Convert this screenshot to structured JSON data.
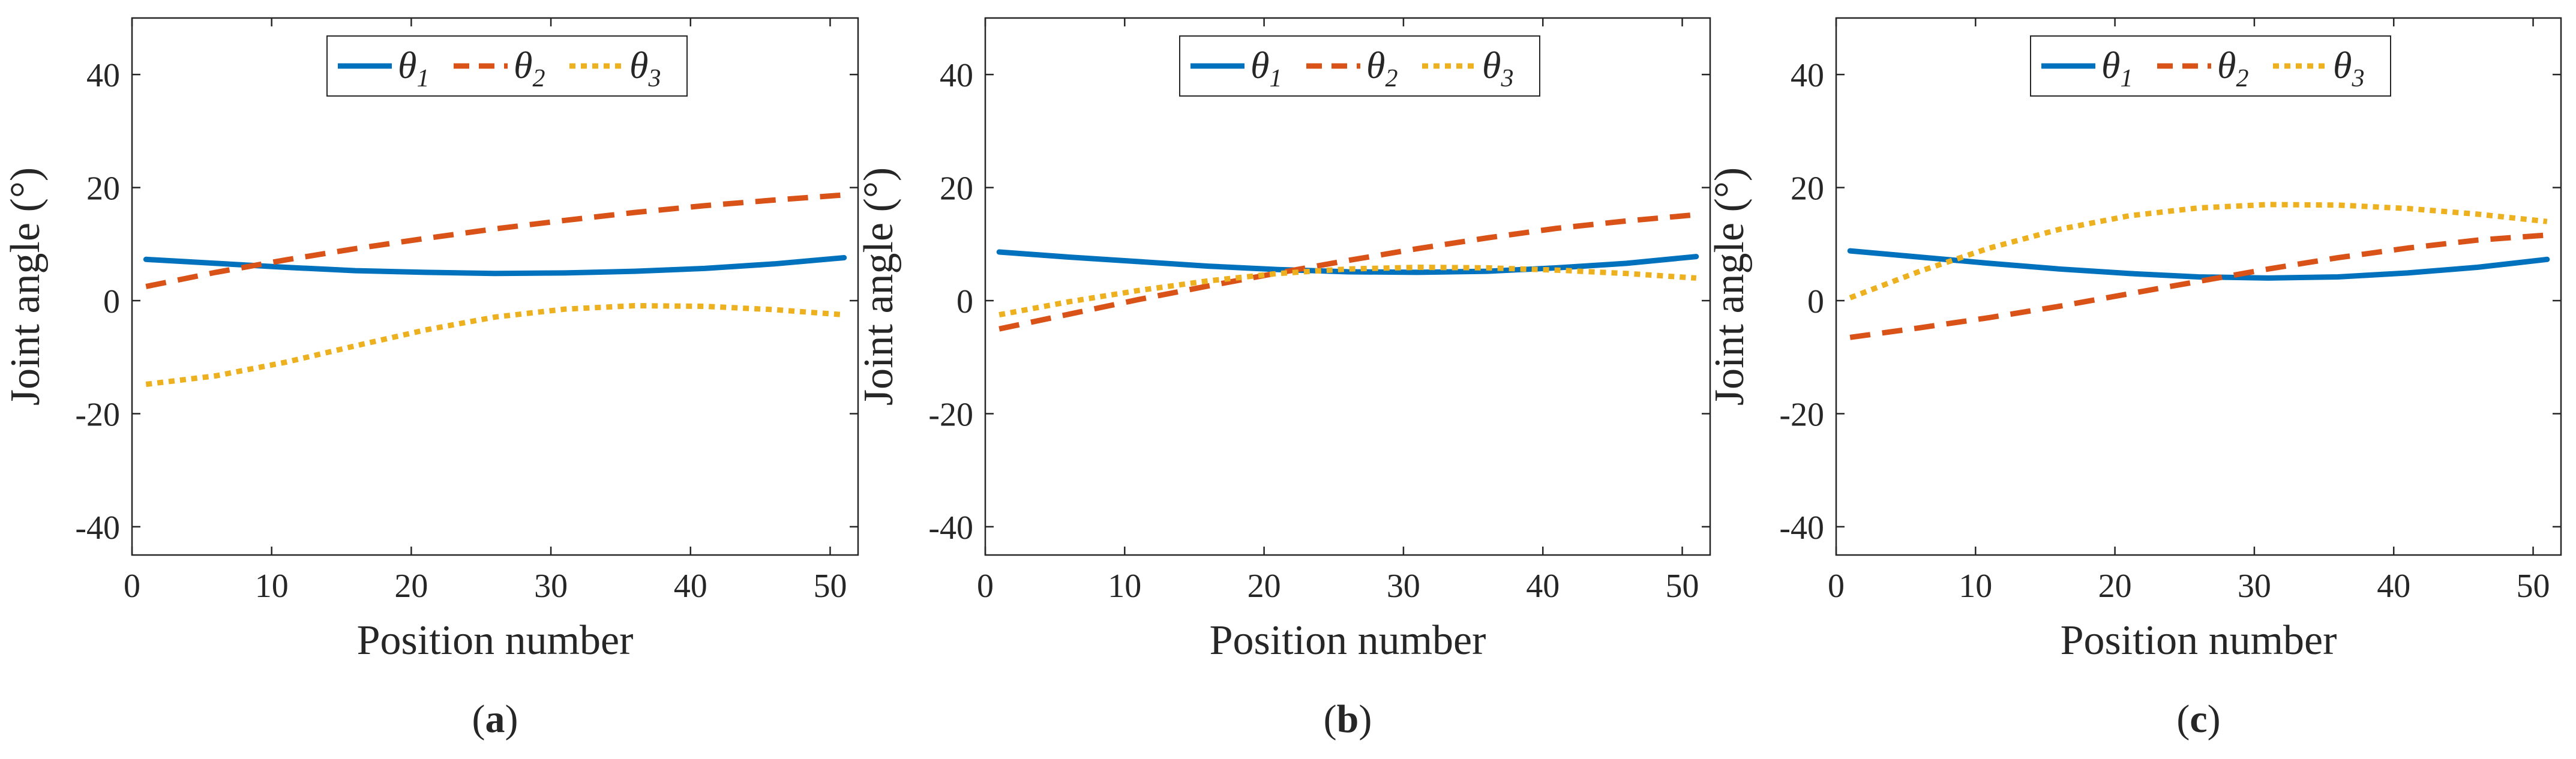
{
  "chart_data": [
    {
      "type": "line",
      "caption": "a",
      "xlabel": "Position number",
      "ylabel": "Joint angle (°)",
      "xlim": [
        0,
        52
      ],
      "ylim": [
        -45,
        50
      ],
      "xticks": [
        0,
        10,
        20,
        30,
        40,
        50
      ],
      "yticks": [
        -40,
        -20,
        0,
        20,
        40
      ],
      "legend_position": "top-center",
      "x": [
        1,
        6,
        11,
        16,
        21,
        26,
        31,
        36,
        41,
        46,
        51
      ],
      "series": [
        {
          "name": "θ1",
          "symbol": "θ",
          "subscript": "1",
          "style": "solid",
          "color": "#0072BD",
          "values": [
            7.3,
            6.6,
            5.9,
            5.3,
            5.0,
            4.8,
            4.9,
            5.2,
            5.7,
            6.5,
            7.6
          ]
        },
        {
          "name": "θ2",
          "symbol": "θ",
          "subscript": "2",
          "style": "dashed",
          "color": "#D95319",
          "values": [
            2.5,
            5.0,
            7.2,
            9.2,
            11.0,
            12.7,
            14.2,
            15.6,
            16.8,
            17.8,
            18.7
          ]
        },
        {
          "name": "θ3",
          "symbol": "θ",
          "subscript": "3",
          "style": "dotted",
          "color": "#EDB120",
          "values": [
            -14.8,
            -13.3,
            -10.9,
            -8.0,
            -5.2,
            -2.9,
            -1.5,
            -0.9,
            -1.0,
            -1.6,
            -2.5
          ]
        }
      ]
    },
    {
      "type": "line",
      "caption": "b",
      "xlabel": "Position number",
      "ylabel": "Joint angle (°)",
      "xlim": [
        0,
        52
      ],
      "ylim": [
        -45,
        50
      ],
      "xticks": [
        0,
        10,
        20,
        30,
        40,
        50
      ],
      "yticks": [
        -40,
        -20,
        0,
        20,
        40
      ],
      "legend_position": "top-center",
      "x": [
        1,
        6,
        11,
        16,
        21,
        26,
        31,
        36,
        41,
        46,
        51
      ],
      "series": [
        {
          "name": "θ1",
          "symbol": "θ",
          "subscript": "1",
          "style": "solid",
          "color": "#0072BD",
          "values": [
            8.6,
            7.7,
            6.9,
            6.1,
            5.5,
            5.1,
            5.0,
            5.2,
            5.8,
            6.6,
            7.8
          ]
        },
        {
          "name": "θ2",
          "symbol": "θ",
          "subscript": "2",
          "style": "dashed",
          "color": "#D95319",
          "values": [
            -5.0,
            -2.4,
            0.2,
            2.6,
            4.9,
            7.1,
            9.2,
            11.1,
            12.8,
            14.1,
            15.2
          ]
        },
        {
          "name": "θ3",
          "symbol": "θ",
          "subscript": "3",
          "style": "dotted",
          "color": "#EDB120",
          "values": [
            -2.5,
            -0.2,
            1.8,
            3.5,
            4.8,
            5.6,
            5.9,
            5.8,
            5.4,
            4.8,
            4.0
          ]
        }
      ]
    },
    {
      "type": "line",
      "caption": "c",
      "xlabel": "Position number",
      "ylabel": "Joint angle (°)",
      "xlim": [
        0,
        52
      ],
      "ylim": [
        -45,
        50
      ],
      "xticks": [
        0,
        10,
        20,
        30,
        40,
        50
      ],
      "yticks": [
        -40,
        -20,
        0,
        20,
        40
      ],
      "legend_position": "top-center",
      "x": [
        1,
        6,
        11,
        16,
        21,
        26,
        31,
        36,
        41,
        46,
        51
      ],
      "series": [
        {
          "name": "θ1",
          "symbol": "θ",
          "subscript": "1",
          "style": "solid",
          "color": "#0072BD",
          "values": [
            8.8,
            7.7,
            6.6,
            5.6,
            4.8,
            4.2,
            4.0,
            4.2,
            4.9,
            5.9,
            7.3
          ]
        },
        {
          "name": "θ2",
          "symbol": "θ",
          "subscript": "2",
          "style": "dashed",
          "color": "#D95319",
          "values": [
            -6.5,
            -4.8,
            -3.0,
            -1.0,
            1.2,
            3.4,
            5.6,
            7.6,
            9.3,
            10.7,
            11.6
          ]
        },
        {
          "name": "θ3",
          "symbol": "θ",
          "subscript": "3",
          "style": "dotted",
          "color": "#EDB120",
          "values": [
            0.5,
            5.2,
            9.3,
            12.6,
            15.0,
            16.4,
            17.0,
            16.9,
            16.3,
            15.3,
            14.0
          ]
        }
      ]
    }
  ]
}
